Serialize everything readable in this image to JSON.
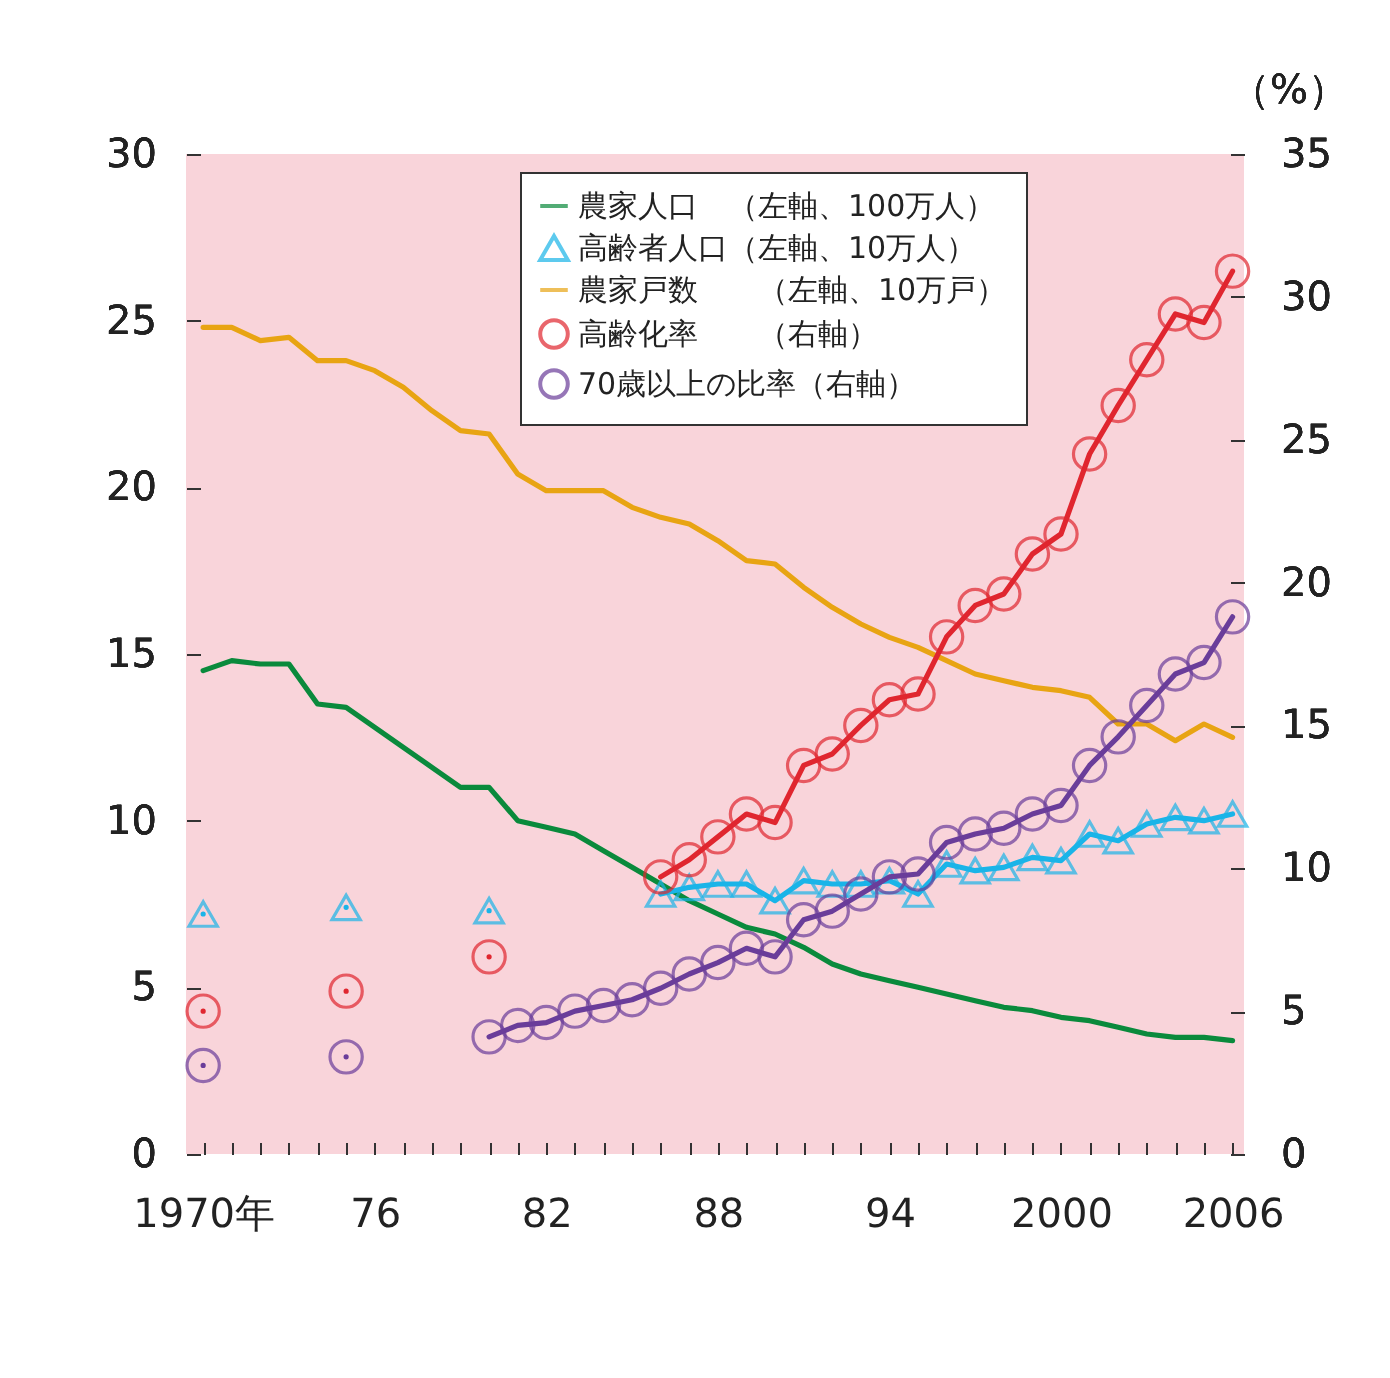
{
  "chart_data": {
    "type": "line",
    "x": [
      1970,
      1971,
      1972,
      1973,
      1974,
      1975,
      1976,
      1977,
      1978,
      1979,
      1980,
      1981,
      1982,
      1983,
      1984,
      1985,
      1986,
      1987,
      1988,
      1989,
      1990,
      1991,
      1992,
      1993,
      1994,
      1995,
      1996,
      1997,
      1998,
      1999,
      2000,
      2001,
      2002,
      2003,
      2004,
      2005,
      2006
    ],
    "xlim": [
      1969.4,
      2006.4
    ],
    "xticks": [
      {
        "value": 1970,
        "label": "1970年"
      },
      {
        "value": 1971,
        "label": null
      },
      {
        "value": 1972,
        "label": null
      },
      {
        "value": 1973,
        "label": null
      },
      {
        "value": 1974,
        "label": null
      },
      {
        "value": 1975,
        "label": null
      },
      {
        "value": 1976,
        "label": "76"
      },
      {
        "value": 1977,
        "label": null
      },
      {
        "value": 1978,
        "label": null
      },
      {
        "value": 1979,
        "label": null
      },
      {
        "value": 1980,
        "label": null
      },
      {
        "value": 1981,
        "label": null
      },
      {
        "value": 1982,
        "label": "82"
      },
      {
        "value": 1983,
        "label": null
      },
      {
        "value": 1984,
        "label": null
      },
      {
        "value": 1985,
        "label": null
      },
      {
        "value": 1986,
        "label": null
      },
      {
        "value": 1987,
        "label": null
      },
      {
        "value": 1988,
        "label": "88"
      },
      {
        "value": 1989,
        "label": null
      },
      {
        "value": 1990,
        "label": null
      },
      {
        "value": 1991,
        "label": null
      },
      {
        "value": 1992,
        "label": null
      },
      {
        "value": 1993,
        "label": null
      },
      {
        "value": 1994,
        "label": "94"
      },
      {
        "value": 1995,
        "label": null
      },
      {
        "value": 1996,
        "label": null
      },
      {
        "value": 1997,
        "label": null
      },
      {
        "value": 1998,
        "label": null
      },
      {
        "value": 1999,
        "label": null
      },
      2000,
      {
        "value": 2001,
        "label": null
      },
      {
        "value": 2002,
        "label": null
      },
      {
        "value": 2003,
        "label": null
      },
      {
        "value": 2004,
        "label": null
      },
      {
        "value": 2005,
        "label": null
      },
      2006
    ],
    "ylim": [
      0,
      30
    ],
    "yticks": [
      0,
      5,
      10,
      15,
      20,
      25,
      30
    ],
    "y2lim": [
      0,
      35
    ],
    "y2ticks": [
      0,
      5,
      10,
      15,
      20,
      25,
      30,
      35
    ],
    "y2label": "（%）",
    "grid": false,
    "legend": "top right",
    "series": [
      {
        "name": "農家人口　（左軸、100万人）",
        "color": "#0a8a3c",
        "marker": "none",
        "values": [
          14.5,
          14.8,
          14.7,
          14.7,
          13.5,
          13.4,
          12.8,
          12.2,
          11.6,
          11.0,
          11.0,
          10.0,
          9.8,
          9.6,
          9.1,
          8.6,
          8.1,
          7.6,
          7.2,
          6.8,
          6.6,
          6.2,
          5.7,
          5.4,
          5.2,
          5.0,
          4.8,
          4.6,
          4.4,
          4.3,
          4.1,
          4.0,
          3.8,
          3.6,
          3.5,
          3.5,
          3.4
        ]
      },
      {
        "name": "高齢者人口（左軸、10万人）",
        "color": "#1ab4e8",
        "marker": "triangle",
        "values": [
          7.2,
          null,
          null,
          null,
          null,
          7.4,
          null,
          null,
          null,
          null,
          7.3,
          null,
          null,
          null,
          null,
          null,
          7.8,
          8.0,
          8.1,
          8.1,
          7.6,
          8.2,
          8.1,
          8.1,
          8.2,
          7.8,
          8.7,
          8.5,
          8.6,
          8.9,
          8.8,
          9.6,
          9.4,
          9.9,
          10.1,
          10.0,
          10.2
        ]
      },
      {
        "name": "農家戸数　　（左軸、10万戸）",
        "color": "#e8a413",
        "marker": "none",
        "values": [
          24.8,
          24.8,
          24.4,
          24.5,
          23.8,
          23.8,
          23.5,
          23.0,
          22.3,
          21.7,
          21.6,
          20.4,
          19.9,
          19.9,
          19.9,
          19.4,
          19.1,
          18.9,
          18.4,
          17.8,
          17.7,
          17.0,
          16.4,
          15.9,
          15.5,
          15.2,
          14.8,
          14.4,
          14.2,
          14.0,
          13.9,
          13.7,
          12.9,
          12.9,
          12.4,
          12.9,
          12.5
        ]
      },
      {
        "name": "高齢化率　　（右軸）",
        "color": "#e0262f",
        "marker": "circle",
        "axis": "y2",
        "values": [
          5.0,
          null,
          null,
          null,
          null,
          5.7,
          null,
          null,
          null,
          null,
          6.9,
          null,
          null,
          null,
          null,
          null,
          9.7,
          10.3,
          11.1,
          11.9,
          11.6,
          13.6,
          14.0,
          15.0,
          15.9,
          16.1,
          18.1,
          19.2,
          19.6,
          21.0,
          21.7,
          24.5,
          26.2,
          27.8,
          29.4,
          29.1,
          30.9
        ]
      },
      {
        "name": "70歳以上の比率（右軸）",
        "color": "#6a3d9a",
        "marker": "circle",
        "axis": "y2",
        "values": [
          3.1,
          null,
          null,
          null,
          null,
          3.4,
          null,
          null,
          null,
          null,
          4.1,
          4.5,
          4.6,
          5.0,
          5.2,
          5.4,
          5.8,
          6.3,
          6.7,
          7.2,
          6.9,
          8.2,
          8.5,
          9.1,
          9.7,
          9.8,
          10.9,
          11.2,
          11.4,
          11.9,
          12.2,
          13.6,
          14.6,
          15.7,
          16.8,
          17.2,
          18.8
        ]
      }
    ]
  }
}
